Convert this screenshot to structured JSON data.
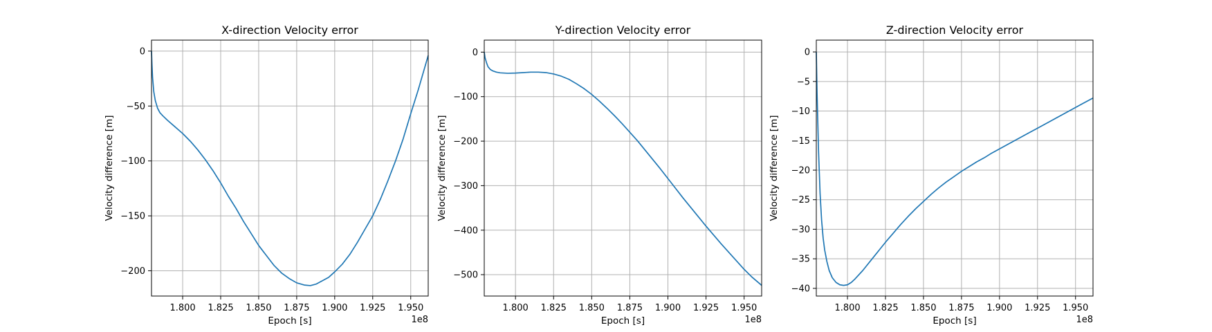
{
  "chart_data": [
    {
      "type": "line",
      "title": "X-direction Velocity error",
      "xlabel": "Epoch [s]",
      "ylabel": "Velocity difference [m]",
      "x_offset_label": "1e8",
      "xlim": [
        1.7795,
        1.9615
      ],
      "ylim": [
        -223,
        10
      ],
      "xticks": [
        1.8,
        1.825,
        1.85,
        1.875,
        1.9,
        1.925,
        1.95
      ],
      "xtick_labels": [
        "1.800",
        "1.825",
        "1.850",
        "1.875",
        "1.900",
        "1.925",
        "1.950"
      ],
      "yticks": [
        0,
        -50,
        -100,
        -150,
        -200
      ],
      "ytick_labels": [
        "0",
        "−50",
        "−100",
        "−150",
        "−200"
      ],
      "grid": true,
      "line_color": "#1f77b4",
      "series": [
        {
          "x": [
            1.7795,
            1.7798,
            1.7802,
            1.781,
            1.782,
            1.7835,
            1.785,
            1.787,
            1.79,
            1.795,
            1.8,
            1.805,
            1.81,
            1.815,
            1.82,
            1.825,
            1.83,
            1.835,
            1.84,
            1.845,
            1.85,
            1.855,
            1.86,
            1.865,
            1.87,
            1.875,
            1.88,
            1.884,
            1.888,
            1.892,
            1.896,
            1.9,
            1.905,
            1.91,
            1.915,
            1.92,
            1.925,
            1.93,
            1.935,
            1.94,
            1.945,
            1.95,
            1.955,
            1.9615
          ],
          "y": [
            0,
            -12,
            -24,
            -37,
            -45,
            -52,
            -56,
            -59,
            -63,
            -69,
            -75,
            -82,
            -90,
            -99,
            -109,
            -120,
            -132,
            -143,
            -155,
            -166,
            -177,
            -186,
            -195,
            -202,
            -207,
            -211,
            -213,
            -213.5,
            -212,
            -209,
            -206,
            -201,
            -194,
            -185,
            -174,
            -162,
            -150,
            -135,
            -118,
            -100,
            -80,
            -57,
            -35,
            -4
          ]
        }
      ]
    },
    {
      "type": "line",
      "title": "Y-direction Velocity error",
      "xlabel": "Epoch [s]",
      "ylabel": "Velocity difference [m]",
      "x_offset_label": "1e8",
      "xlim": [
        1.7795,
        1.9615
      ],
      "ylim": [
        -548,
        27
      ],
      "xticks": [
        1.8,
        1.825,
        1.85,
        1.875,
        1.9,
        1.925,
        1.95
      ],
      "xtick_labels": [
        "1.800",
        "1.825",
        "1.850",
        "1.875",
        "1.900",
        "1.925",
        "1.950"
      ],
      "yticks": [
        0,
        -100,
        -200,
        -300,
        -400,
        -500
      ],
      "ytick_labels": [
        "0",
        "−100",
        "−200",
        "−300",
        "−400",
        "−500"
      ],
      "grid": true,
      "line_color": "#1f77b4",
      "series": [
        {
          "x": [
            1.7795,
            1.78,
            1.781,
            1.782,
            1.7835,
            1.785,
            1.7875,
            1.79,
            1.795,
            1.8,
            1.805,
            1.81,
            1.815,
            1.82,
            1.825,
            1.83,
            1.835,
            1.84,
            1.845,
            1.85,
            1.855,
            1.86,
            1.865,
            1.87,
            1.875,
            1.88,
            1.885,
            1.89,
            1.895,
            1.9,
            1.905,
            1.91,
            1.915,
            1.92,
            1.925,
            1.93,
            1.935,
            1.94,
            1.945,
            1.95,
            1.955,
            1.9615
          ],
          "y": [
            0,
            -12,
            -24,
            -33,
            -39,
            -42,
            -45,
            -46.5,
            -47.5,
            -47,
            -46,
            -45,
            -45,
            -46,
            -49,
            -54,
            -61,
            -71,
            -82,
            -95,
            -110,
            -126,
            -143,
            -161,
            -180,
            -199,
            -220,
            -241,
            -262,
            -284,
            -306,
            -328,
            -349,
            -370,
            -391,
            -411,
            -431,
            -450,
            -469,
            -488,
            -505,
            -524
          ]
        }
      ]
    },
    {
      "type": "line",
      "title": "Z-direction Velocity error",
      "xlabel": "Epoch [s]",
      "ylabel": "Velocity difference [m]",
      "x_offset_label": "1e8",
      "xlim": [
        1.7795,
        1.9615
      ],
      "ylim": [
        -41.3,
        2
      ],
      "xticks": [
        1.8,
        1.825,
        1.85,
        1.875,
        1.9,
        1.925,
        1.95
      ],
      "xtick_labels": [
        "1.800",
        "1.825",
        "1.850",
        "1.875",
        "1.900",
        "1.925",
        "1.950"
      ],
      "yticks": [
        0,
        -5,
        -10,
        -15,
        -20,
        -25,
        -30,
        -35,
        -40
      ],
      "ytick_labels": [
        "0",
        "−5",
        "−10",
        "−15",
        "−20",
        "−25",
        "−30",
        "−35",
        "−40"
      ],
      "grid": true,
      "line_color": "#1f77b4",
      "series": [
        {
          "x": [
            1.7795,
            1.78,
            1.781,
            1.782,
            1.783,
            1.784,
            1.785,
            1.7865,
            1.788,
            1.79,
            1.7925,
            1.795,
            1.7975,
            1.8,
            1.8025,
            1.805,
            1.81,
            1.815,
            1.82,
            1.825,
            1.83,
            1.835,
            1.84,
            1.845,
            1.85,
            1.855,
            1.86,
            1.865,
            1.87,
            1.875,
            1.88,
            1.885,
            1.89,
            1.895,
            1.9,
            1.905,
            1.91,
            1.915,
            1.92,
            1.925,
            1.93,
            1.935,
            1.94,
            1.945,
            1.95,
            1.955,
            1.9615
          ],
          "y": [
            0,
            -7,
            -17,
            -24,
            -28.5,
            -31.5,
            -33.5,
            -35.5,
            -37,
            -38.2,
            -39,
            -39.4,
            -39.5,
            -39.4,
            -39,
            -38.4,
            -37,
            -35.4,
            -33.8,
            -32.2,
            -30.7,
            -29.2,
            -27.8,
            -26.5,
            -25.3,
            -24.1,
            -23,
            -22,
            -21.1,
            -20.2,
            -19.4,
            -18.6,
            -17.9,
            -17.1,
            -16.4,
            -15.7,
            -15,
            -14.3,
            -13.6,
            -12.9,
            -12.2,
            -11.5,
            -10.8,
            -10.1,
            -9.4,
            -8.7,
            -7.8
          ]
        }
      ]
    }
  ]
}
